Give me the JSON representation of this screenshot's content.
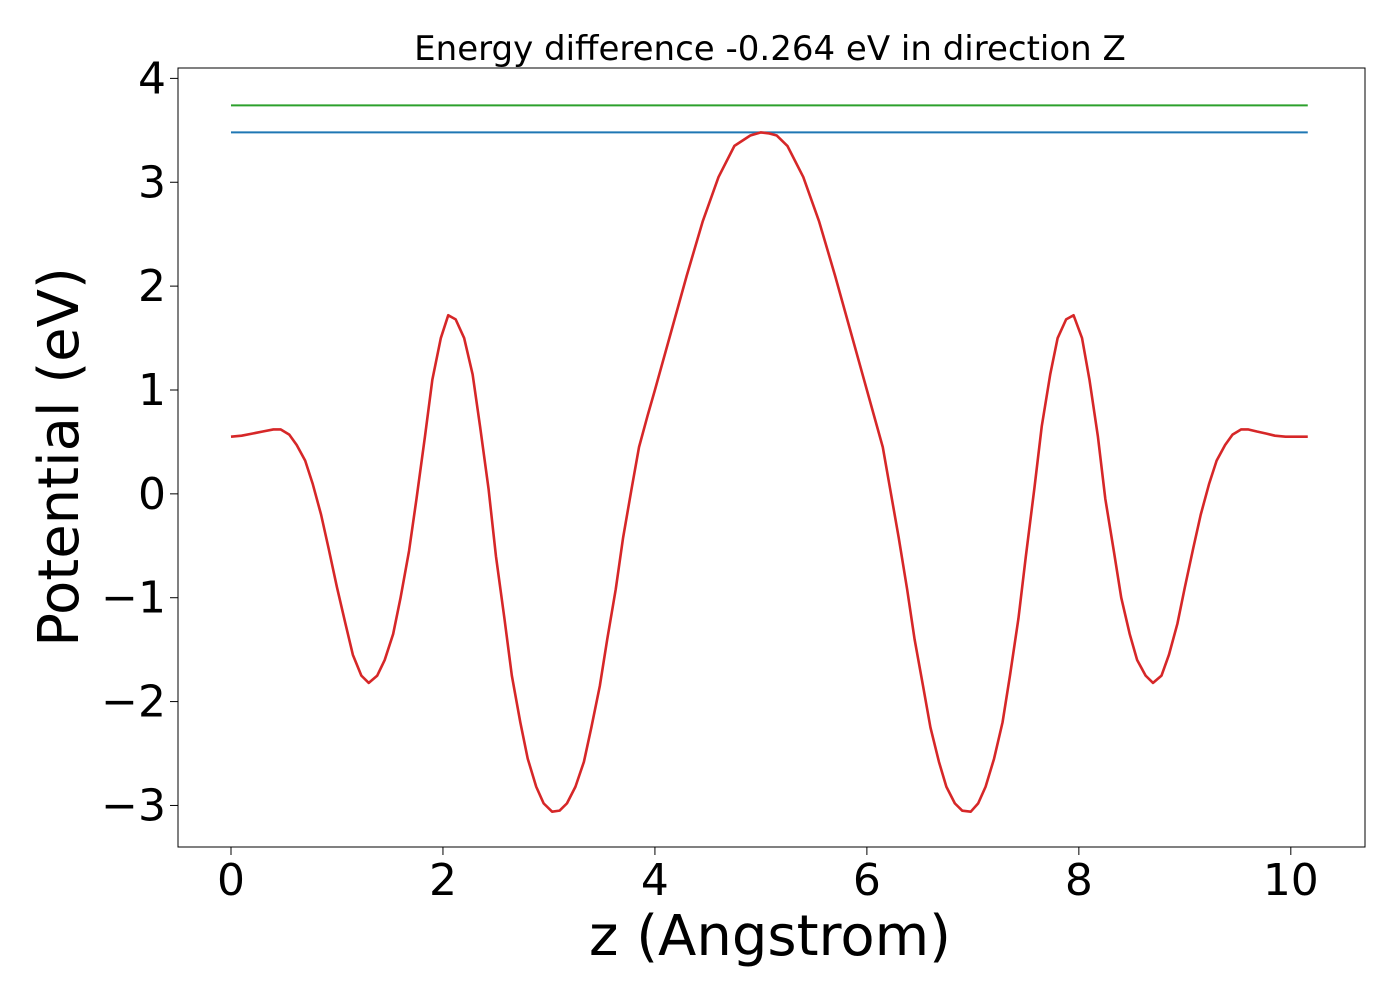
{
  "chart_data": {
    "type": "line",
    "title": "Energy difference -0.264 eV in direction Z",
    "xlabel": "z (Angstrom)",
    "ylabel": "Potential (eV)",
    "xlim": [
      -0.5,
      10.7
    ],
    "ylim": [
      -3.4,
      4.1
    ],
    "xticks": [
      0,
      2,
      4,
      6,
      8,
      10
    ],
    "xtick_labels": [
      "0",
      "2",
      "4",
      "6",
      "8",
      "10"
    ],
    "yticks": [
      -3,
      -2,
      -1,
      0,
      1,
      2,
      3,
      4
    ],
    "ytick_labels": [
      "−3",
      "−2",
      "−1",
      "0",
      "1",
      "2",
      "3",
      "4"
    ],
    "grid": false,
    "legend": "none",
    "series": [
      {
        "color": "#2ca02c",
        "x": [
          0,
          10.16
        ],
        "y": [
          3.74,
          3.74
        ]
      },
      {
        "color": "#1f77b4",
        "x": [
          0,
          10.16
        ],
        "y": [
          3.48,
          3.48
        ]
      },
      {
        "color": "#d62728",
        "x": [
          0,
          0.1,
          0.2,
          0.3,
          0.4,
          0.47,
          0.55,
          0.62,
          0.7,
          0.77,
          0.85,
          0.92,
          1.0,
          1.08,
          1.15,
          1.23,
          1.3,
          1.38,
          1.45,
          1.53,
          1.6,
          1.68,
          1.75,
          1.83,
          1.9,
          1.98,
          2.05,
          2.12,
          2.2,
          2.28,
          2.35,
          2.43,
          2.5,
          2.58,
          2.65,
          2.73,
          2.8,
          2.88,
          2.95,
          3.03,
          3.1,
          3.17,
          3.25,
          3.33,
          3.4,
          3.48,
          3.55,
          3.63,
          3.7,
          3.78,
          3.85,
          3.93,
          4.0,
          4.15,
          4.3,
          4.45,
          4.6,
          4.75,
          4.9,
          5.0,
          5.08,
          5.15,
          5.25,
          5.4,
          5.55,
          5.7,
          5.85,
          6.0,
          6.15,
          6.3,
          6.38,
          6.45,
          6.53,
          6.6,
          6.68,
          6.75,
          6.83,
          6.9,
          6.98,
          7.05,
          7.12,
          7.2,
          7.28,
          7.35,
          7.43,
          7.5,
          7.58,
          7.65,
          7.73,
          7.8,
          7.88,
          7.95,
          8.03,
          8.1,
          8.18,
          8.25,
          8.33,
          8.4,
          8.48,
          8.55,
          8.63,
          8.7,
          8.78,
          8.85,
          8.93,
          9.0,
          9.08,
          9.15,
          9.23,
          9.3,
          9.38,
          9.45,
          9.53,
          9.6,
          9.68,
          9.77,
          9.85,
          9.95,
          10.05,
          10.16
        ],
        "y": [
          0.55,
          0.56,
          0.58,
          0.6,
          0.62,
          0.62,
          0.57,
          0.47,
          0.32,
          0.1,
          -0.2,
          -0.52,
          -0.9,
          -1.25,
          -1.55,
          -1.75,
          -1.82,
          -1.75,
          -1.6,
          -1.35,
          -1.0,
          -0.55,
          -0.05,
          0.55,
          1.1,
          1.5,
          1.72,
          1.68,
          1.5,
          1.15,
          0.65,
          0.05,
          -0.6,
          -1.2,
          -1.75,
          -2.2,
          -2.55,
          -2.82,
          -2.98,
          -3.06,
          -3.05,
          -2.98,
          -2.82,
          -2.58,
          -2.25,
          -1.85,
          -1.4,
          -0.92,
          -0.42,
          0.05,
          0.45,
          0.75,
          1.0,
          1.55,
          2.1,
          2.62,
          3.05,
          3.35,
          3.45,
          3.48,
          3.47,
          3.45,
          3.35,
          3.05,
          2.62,
          2.1,
          1.55,
          1.0,
          0.45,
          -0.42,
          -0.92,
          -1.4,
          -1.85,
          -2.25,
          -2.58,
          -2.82,
          -2.98,
          -3.05,
          -3.06,
          -2.98,
          -2.82,
          -2.55,
          -2.2,
          -1.75,
          -1.2,
          -0.6,
          0.05,
          0.65,
          1.15,
          1.5,
          1.68,
          1.72,
          1.5,
          1.1,
          0.55,
          -0.05,
          -0.55,
          -1.0,
          -1.35,
          -1.6,
          -1.75,
          -1.82,
          -1.75,
          -1.55,
          -1.25,
          -0.9,
          -0.52,
          -0.2,
          0.1,
          0.32,
          0.47,
          0.57,
          0.62,
          0.62,
          0.6,
          0.58,
          0.56,
          0.55,
          0.55,
          0.55
        ]
      }
    ]
  }
}
